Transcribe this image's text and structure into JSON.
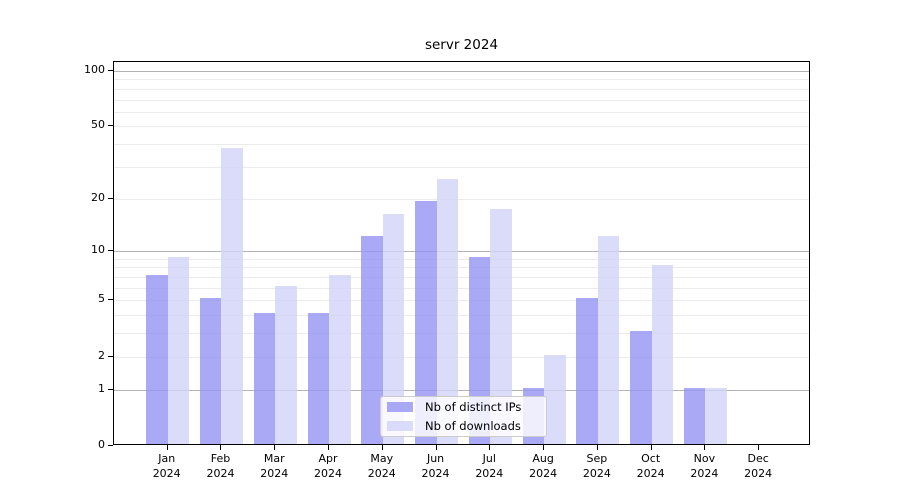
{
  "title": "servr 2024",
  "chart_data": {
    "type": "bar",
    "title": "servr 2024",
    "xlabel": "",
    "ylabel": "",
    "yscale": "log1p",
    "grid": true,
    "ylim": [
      0,
      113
    ],
    "ytick_labels": [
      "100",
      "50",
      "20",
      "10",
      "5",
      "2",
      "1",
      "0"
    ],
    "ytick_values": [
      100,
      50,
      20,
      10,
      5,
      2,
      1,
      0
    ],
    "minor_grid_values": [
      2,
      3,
      4,
      5,
      6,
      7,
      8,
      9,
      20,
      30,
      40,
      50,
      60,
      70,
      80,
      90
    ],
    "major_grid_values": [
      1,
      10,
      100
    ],
    "legend_position": "bottom-center",
    "categories": [
      {
        "month": "Jan",
        "year": "2024"
      },
      {
        "month": "Feb",
        "year": "2024"
      },
      {
        "month": "Mar",
        "year": "2024"
      },
      {
        "month": "Apr",
        "year": "2024"
      },
      {
        "month": "May",
        "year": "2024"
      },
      {
        "month": "Jun",
        "year": "2024"
      },
      {
        "month": "Jul",
        "year": "2024"
      },
      {
        "month": "Aug",
        "year": "2024"
      },
      {
        "month": "Sep",
        "year": "2024"
      },
      {
        "month": "Oct",
        "year": "2024"
      },
      {
        "month": "Nov",
        "year": "2024"
      },
      {
        "month": "Dec",
        "year": "2024"
      }
    ],
    "series": [
      {
        "name": "Nb of distinct IPs",
        "color": "rgba(148,148,244,0.8)",
        "values": [
          7,
          5,
          4,
          4,
          12,
          19,
          9,
          1,
          5,
          3,
          1,
          0
        ]
      },
      {
        "name": "Nb of downloads",
        "color": "rgba(210,210,249,0.8)",
        "values": [
          9,
          37,
          6,
          7,
          16,
          25,
          17,
          2,
          12,
          8,
          1,
          0
        ]
      }
    ]
  }
}
